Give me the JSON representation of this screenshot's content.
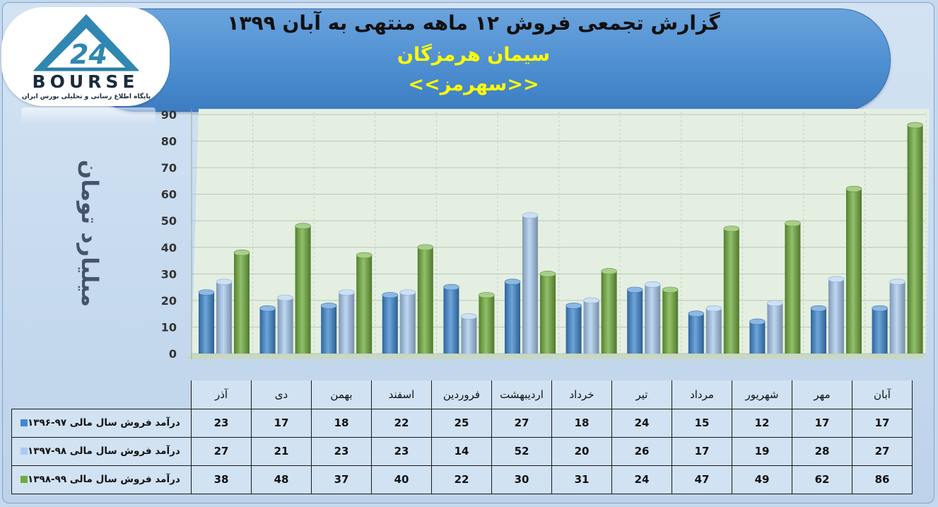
{
  "header": {
    "title": "گزارش تجمعی فروش ۱۲ ماهه منتهی به آبان ۱۳۹۹",
    "company": "سیمان هرمزگان",
    "symbol": "<<سهرمز>>"
  },
  "logo": {
    "word": "BOURSE",
    "tagline": "پایگاه اطلاع رسانی و تحلیلی بورس ایران",
    "mark": "24"
  },
  "chart_data": {
    "type": "bar",
    "ylabel": "میلیارد تومان",
    "ylim": [
      0,
      90
    ],
    "yticks": [
      0,
      10,
      20,
      30,
      40,
      50,
      60,
      70,
      80,
      90
    ],
    "grid": true,
    "categories": [
      "آذر",
      "دی",
      "بهمن",
      "اسفند",
      "فروردین",
      "اردیبهشت",
      "خرداد",
      "تیر",
      "مرداد",
      "شهریور",
      "مهر",
      "آبان"
    ],
    "series": [
      {
        "name": "درآمد فروش سال مالی ۹۷-۱۳۹۶",
        "color": "#3f88cf",
        "values": [
          23,
          17,
          18,
          22,
          25,
          27,
          18,
          24,
          15,
          12,
          17,
          17
        ]
      },
      {
        "name": "درآمد فروش سال مالی ۹۸-۱۳۹۷",
        "color": "#a9cbef",
        "values": [
          27,
          21,
          23,
          23,
          14,
          52,
          20,
          26,
          17,
          19,
          28,
          27
        ]
      },
      {
        "name": "درآمد فروش سال مالی ۹۹-۱۳۹۸",
        "color": "#6fac3c",
        "values": [
          38,
          48,
          37,
          40,
          22,
          30,
          31,
          24,
          47,
          49,
          62,
          86
        ]
      }
    ],
    "legend": "table-left"
  },
  "colors": {
    "banner": "#4e8fd2",
    "accent_text": "#ffff00",
    "plot_bg": "#e4efe2"
  }
}
